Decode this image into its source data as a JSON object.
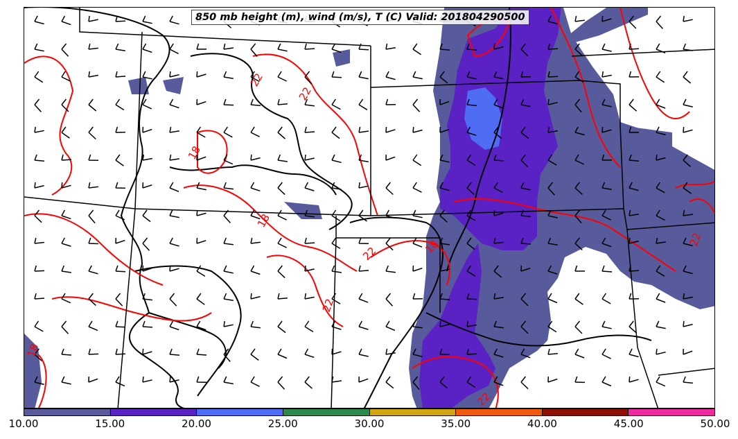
{
  "title": "850 mb height (m), wind (m/s), T (C) Valid: 201804290500",
  "contour_labels": [
    "22",
    "22",
    "18",
    "18",
    "22",
    "22",
    "18",
    "22",
    "22",
    "18"
  ],
  "colorbar": {
    "ticks": [
      "10.00",
      "15.00",
      "20.00",
      "25.00",
      "30.00",
      "35.00",
      "40.00",
      "45.00",
      "50.00"
    ],
    "colors": [
      "#575b9c",
      "#5a22c4",
      "#4f6cf5",
      "#2a8a4e",
      "#d1a512",
      "#f05a0e",
      "#8e0f05",
      "#ef2aa0"
    ]
  },
  "colors": {
    "temperature_contour": "#ff0000",
    "height_contour": "#000000",
    "shading_10_15": "#575b9c",
    "shading_15_20": "#5a22c4",
    "shading_20_25": "#4f6cf5"
  },
  "chart_data": {
    "type": "heatmap",
    "variable_shaded": "wind (m/s)",
    "shading_levels": [
      10,
      15,
      20,
      25,
      30,
      35,
      40,
      45,
      50
    ],
    "temperature_contours_C": [
      18,
      22
    ],
    "valid_time": "201804290500"
  }
}
